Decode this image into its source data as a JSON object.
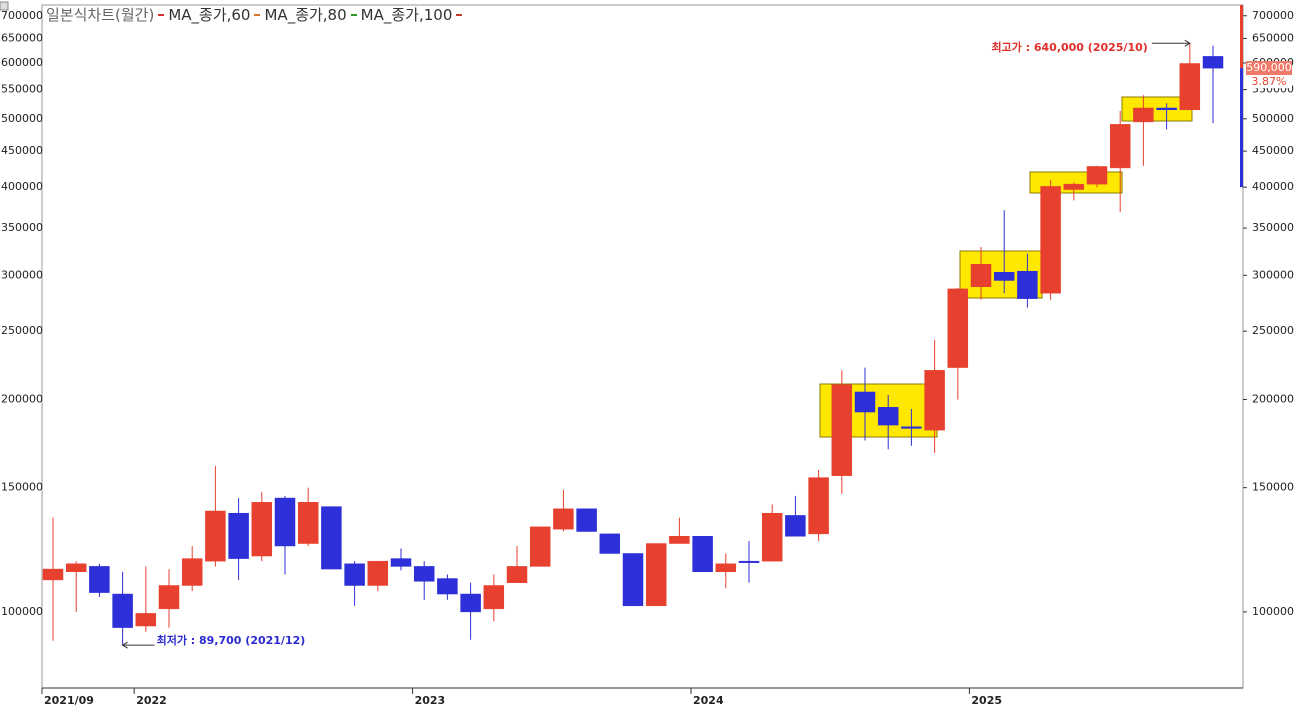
{
  "chart_data": {
    "type": "candlestick",
    "title": "일본식차트(월간)",
    "legend_items": [
      {
        "name": "MA_종가,60",
        "color": "#e0702a"
      },
      {
        "name": "MA_종가,80",
        "color": "#2a9a2a"
      },
      {
        "name": "MA_종가,100",
        "color": "#c0392b"
      }
    ],
    "legend_lead_color": "#d03030",
    "categories": [
      "2021/09",
      null,
      null,
      null,
      "2022",
      null,
      null,
      null,
      null,
      null,
      null,
      null,
      null,
      null,
      null,
      null,
      "2023",
      null,
      null,
      null,
      null,
      null,
      null,
      null,
      null,
      null,
      null,
      null,
      "2024",
      null,
      null,
      null,
      null,
      null,
      null,
      null,
      null,
      null,
      null,
      null,
      "2025",
      null,
      null,
      null,
      null,
      null,
      null,
      null,
      null,
      null,
      null
    ],
    "open": [
      111000,
      114000,
      116000,
      106000,
      95500,
      101000,
      109000,
      118000,
      138000,
      120000,
      145000,
      125000,
      141000,
      117000,
      109000,
      119000,
      116000,
      111500,
      106000,
      101000,
      110000,
      116000,
      131000,
      140000,
      129000,
      121000,
      102000,
      125000,
      128000,
      114000,
      118000,
      118000,
      137000,
      129000,
      156000,
      205000,
      195000,
      183000,
      181000,
      222000,
      289000,
      303000,
      304000,
      283000,
      397000,
      404000,
      426000,
      495000,
      518000,
      515000,
      613000
    ],
    "high": [
      136000,
      118000,
      117000,
      114000,
      116000,
      115000,
      124000,
      161000,
      145000,
      148000,
      146000,
      150000,
      141000,
      118000,
      118000,
      123000,
      118000,
      113000,
      110000,
      113000,
      124000,
      132000,
      149000,
      140000,
      129000,
      121000,
      125000,
      136000,
      128000,
      121000,
      126000,
      142000,
      146000,
      159000,
      220000,
      222000,
      203000,
      194000,
      243000,
      288000,
      329000,
      371000,
      322000,
      409000,
      406000,
      429000,
      513000,
      540000,
      526000,
      640000,
      635000
    ],
    "low": [
      91000,
      100000,
      105000,
      89700,
      93700,
      95000,
      107000,
      116000,
      111000,
      118000,
      113000,
      124000,
      115000,
      102000,
      107000,
      114500,
      104000,
      104000,
      91300,
      97000,
      110000,
      116000,
      130000,
      130000,
      121000,
      102000,
      102000,
      125000,
      114000,
      108000,
      110000,
      118000,
      128000,
      126000,
      147000,
      175000,
      170000,
      172000,
      168000,
      200000,
      277000,
      283000,
      270000,
      277000,
      383000,
      400000,
      369000,
      429000,
      483000,
      515000,
      493000
    ],
    "close": [
      115000,
      117000,
      106500,
      95000,
      99500,
      109000,
      119000,
      139000,
      119000,
      143000,
      124000,
      143000,
      115000,
      109000,
      118000,
      116000,
      110500,
      106000,
      100000,
      109000,
      116000,
      132000,
      140000,
      130000,
      121000,
      102000,
      125000,
      128000,
      114000,
      117000,
      117500,
      138000,
      128000,
      155000,
      210000,
      192000,
      184000,
      182000,
      220000,
      287000,
      311000,
      295000,
      278000,
      401000,
      404000,
      428000,
      491000,
      518000,
      515000,
      599000,
      590000
    ],
    "up_color": "#e8402e",
    "down_color": "#2d2fd8",
    "ylim": [
      78000,
      725000
    ],
    "log_scale": true,
    "yticks": [
      100000,
      150000,
      200000,
      250000,
      300000,
      350000,
      400000,
      450000,
      500000,
      550000,
      600000,
      650000,
      700000
    ],
    "annotations": [
      {
        "text": "최고가 : 640,000 (2025/10)",
        "color": "#e0302a"
      },
      {
        "text": "최저가 : 89,700 (2021/12)",
        "color": "#2a2ad0"
      }
    ],
    "last_price_label": "590,000",
    "change_label": "3.87%"
  }
}
